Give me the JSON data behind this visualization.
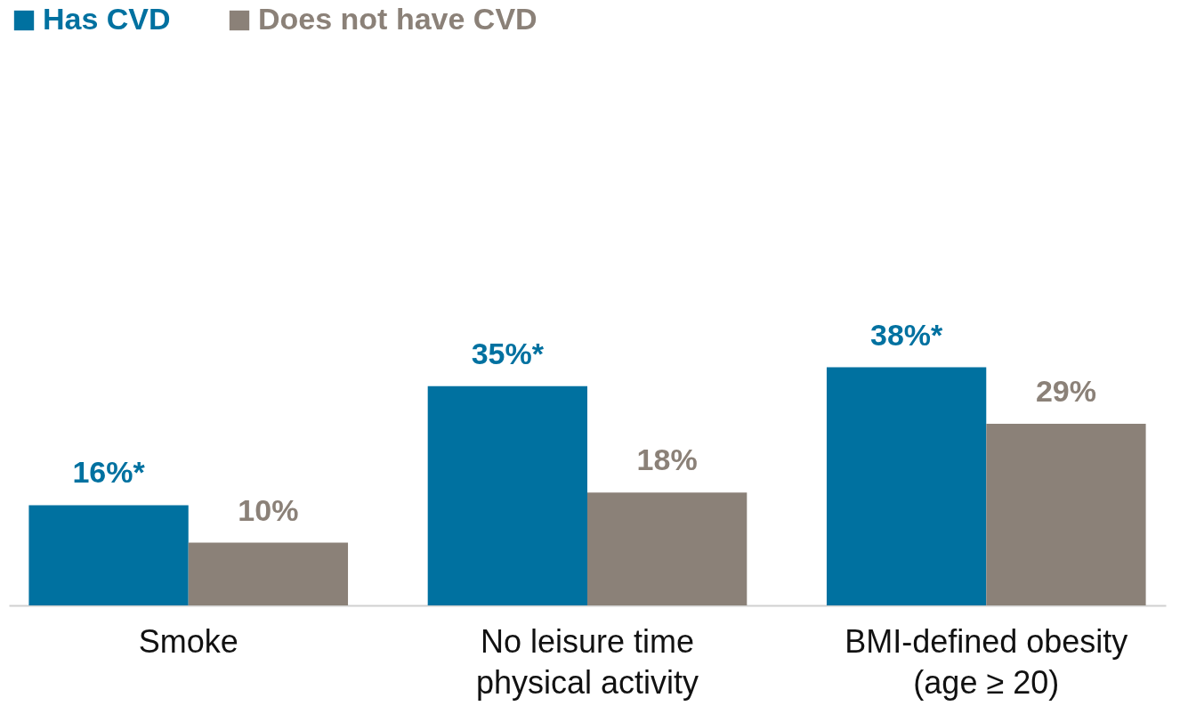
{
  "chart_data": {
    "type": "bar",
    "categories": [
      "Smoke",
      "No leisure time physical activity",
      "BMI-defined obesity (age ≥ 20)"
    ],
    "series": [
      {
        "name": "Has CVD",
        "color": "#0071a0",
        "values": [
          16,
          35,
          38
        ],
        "value_labels": [
          "16%*",
          "35%*",
          "38%*"
        ]
      },
      {
        "name": "Does not have CVD",
        "color": "#8b8178",
        "values": [
          10,
          18,
          29
        ],
        "value_labels": [
          "10%",
          "18%",
          "29%"
        ]
      }
    ],
    "legend": "top",
    "grid": false
  }
}
